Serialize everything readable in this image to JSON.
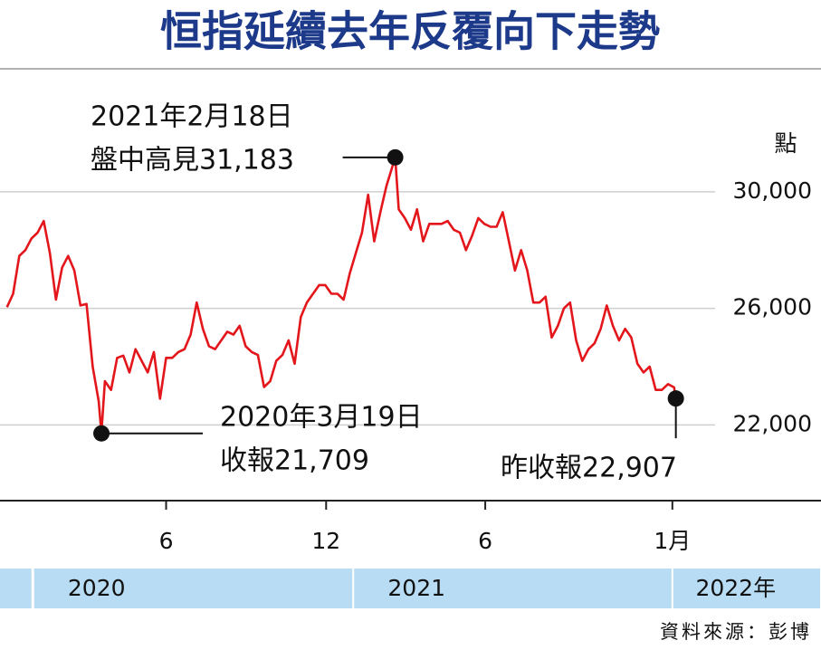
{
  "chart_data": {
    "type": "line",
    "title": "恒指延續去年反覆向下走勢",
    "y_label": "點",
    "source": "資料來源：彭博",
    "color": "#e3161b",
    "grid": true,
    "ylim": [
      19400,
      34100
    ],
    "yticks": [
      {
        "value": 22000,
        "label": "22,000"
      },
      {
        "value": 26000,
        "label": "26,000"
      },
      {
        "value": 30000,
        "label": "30,000"
      }
    ],
    "xlim": [
      "2019-11-24",
      "2022-06-20"
    ],
    "xticks": [
      {
        "value": "2020-06-01",
        "label": "6"
      },
      {
        "value": "2020-12-01",
        "label": "12"
      },
      {
        "value": "2021-06-01",
        "label": "6"
      },
      {
        "value": "2022-01-01",
        "label": "1月"
      }
    ],
    "years": [
      "2020",
      "2021",
      "2022年"
    ],
    "x": [
      "2019-12-02",
      "2019-12-09",
      "2019-12-16",
      "2019-12-23",
      "2019-12-30",
      "2020-01-06",
      "2020-01-13",
      "2020-01-20",
      "2020-01-27",
      "2020-02-03",
      "2020-02-10",
      "2020-02-17",
      "2020-02-24",
      "2020-03-02",
      "2020-03-09",
      "2020-03-16",
      "2020-03-19",
      "2020-03-23",
      "2020-03-30",
      "2020-04-06",
      "2020-04-13",
      "2020-04-20",
      "2020-04-27",
      "2020-05-04",
      "2020-05-11",
      "2020-05-18",
      "2020-05-25",
      "2020-06-01",
      "2020-06-08",
      "2020-06-15",
      "2020-06-22",
      "2020-06-29",
      "2020-07-06",
      "2020-07-13",
      "2020-07-20",
      "2020-07-27",
      "2020-08-03",
      "2020-08-10",
      "2020-08-17",
      "2020-08-24",
      "2020-08-31",
      "2020-09-07",
      "2020-09-14",
      "2020-09-21",
      "2020-09-28",
      "2020-10-05",
      "2020-10-12",
      "2020-10-19",
      "2020-10-26",
      "2020-11-02",
      "2020-11-09",
      "2020-11-16",
      "2020-11-23",
      "2020-11-30",
      "2020-12-07",
      "2020-12-14",
      "2020-12-21",
      "2020-12-28",
      "2021-01-04",
      "2021-01-11",
      "2021-01-18",
      "2021-01-25",
      "2021-02-01",
      "2021-02-08",
      "2021-02-18",
      "2021-02-22",
      "2021-03-01",
      "2021-03-08",
      "2021-03-15",
      "2021-03-22",
      "2021-03-29",
      "2021-04-06",
      "2021-04-12",
      "2021-04-19",
      "2021-04-26",
      "2021-05-03",
      "2021-05-10",
      "2021-05-17",
      "2021-05-24",
      "2021-05-31",
      "2021-06-07",
      "2021-06-14",
      "2021-06-21",
      "2021-06-28",
      "2021-07-05",
      "2021-07-12",
      "2021-07-19",
      "2021-07-26",
      "2021-08-02",
      "2021-08-09",
      "2021-08-16",
      "2021-08-23",
      "2021-08-30",
      "2021-09-06",
      "2021-09-13",
      "2021-09-20",
      "2021-09-27",
      "2021-10-04",
      "2021-10-11",
      "2021-10-18",
      "2021-10-25",
      "2021-11-01",
      "2021-11-08",
      "2021-11-15",
      "2021-11-22",
      "2021-11-29",
      "2021-12-06",
      "2021-12-13",
      "2021-12-20",
      "2021-12-27",
      "2022-01-03",
      "2022-01-05"
    ],
    "values": [
      26040,
      26500,
      27800,
      28000,
      28400,
      28600,
      29000,
      27900,
      26300,
      27400,
      27800,
      27300,
      26100,
      26150,
      24000,
      22800,
      21709,
      23500,
      23200,
      24300,
      24380,
      23800,
      24600,
      24200,
      23800,
      24500,
      22900,
      24300,
      24300,
      24500,
      24600,
      25100,
      26200,
      25300,
      24700,
      24600,
      24900,
      25200,
      25100,
      25400,
      24700,
      24500,
      24400,
      23300,
      23500,
      24200,
      24400,
      24900,
      24100,
      25700,
      26200,
      26500,
      26800,
      26800,
      26500,
      26500,
      26300,
      27200,
      27900,
      28600,
      29900,
      28300,
      29300,
      30200,
      31183,
      29400,
      29100,
      28700,
      29400,
      28300,
      28900,
      28900,
      28900,
      29000,
      28700,
      28600,
      28000,
      28500,
      29100,
      28900,
      28800,
      28800,
      29300,
      28300,
      27300,
      28000,
      27300,
      26200,
      26200,
      26400,
      25000,
      25400,
      26000,
      26200,
      24900,
      24200,
      24600,
      24800,
      25300,
      26100,
      25400,
      24900,
      25300,
      25000,
      24100,
      23800,
      24000,
      23200,
      23200,
      23400,
      23289,
      22907
    ],
    "annotations": [
      {
        "text": [
          "2021年2月18日",
          "盤中高見31,183"
        ],
        "x": "2021-02-18",
        "y": 31183
      },
      {
        "text": [
          "2020年3月19日",
          "收報21,709"
        ],
        "x": "2020-03-19",
        "y": 21709
      },
      {
        "text": [
          "昨收報22,907"
        ],
        "x": "2022-01-05",
        "y": 22907
      }
    ]
  }
}
